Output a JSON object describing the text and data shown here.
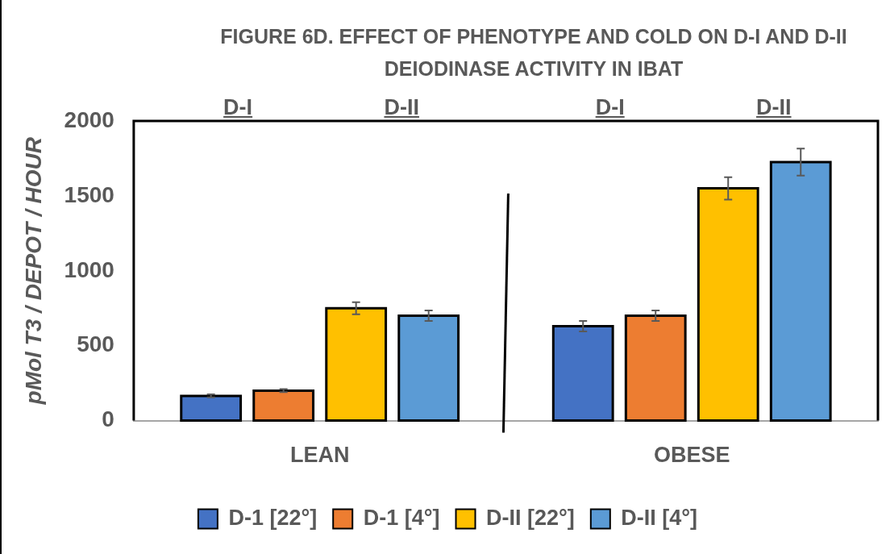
{
  "chart_data": {
    "type": "bar",
    "title": "FIGURE 6D. EFFECT OF PHENOTYPE AND COLD ON D-I AND D-II DEIODINASE ACTIVITY IN IBAT",
    "ylabel": "pMol T3 / DEPOT / HOUR",
    "categories": [
      "LEAN",
      "OBESE"
    ],
    "series": [
      {
        "name": "D-1 [22°]",
        "color": "#4472c4",
        "values": [
          165,
          630
        ],
        "errors": [
          10,
          35
        ]
      },
      {
        "name": "D-1 [4°]",
        "color": "#ed7d31",
        "values": [
          200,
          700
        ],
        "errors": [
          10,
          35
        ]
      },
      {
        "name": "D-II [22°]",
        "color": "#ffc000",
        "values": [
          750,
          1550
        ],
        "errors": [
          40,
          75
        ]
      },
      {
        "name": "D-II [4°]",
        "color": "#5b9bd5",
        "values": [
          700,
          1725
        ],
        "errors": [
          35,
          90
        ]
      }
    ],
    "annotations": [
      "D-I",
      "D-II",
      "D-I",
      "D-II"
    ],
    "ylim": [
      0,
      2000
    ],
    "yticks": [
      0,
      500,
      1000,
      1500,
      2000
    ],
    "grid": false,
    "legend": "bottom"
  }
}
